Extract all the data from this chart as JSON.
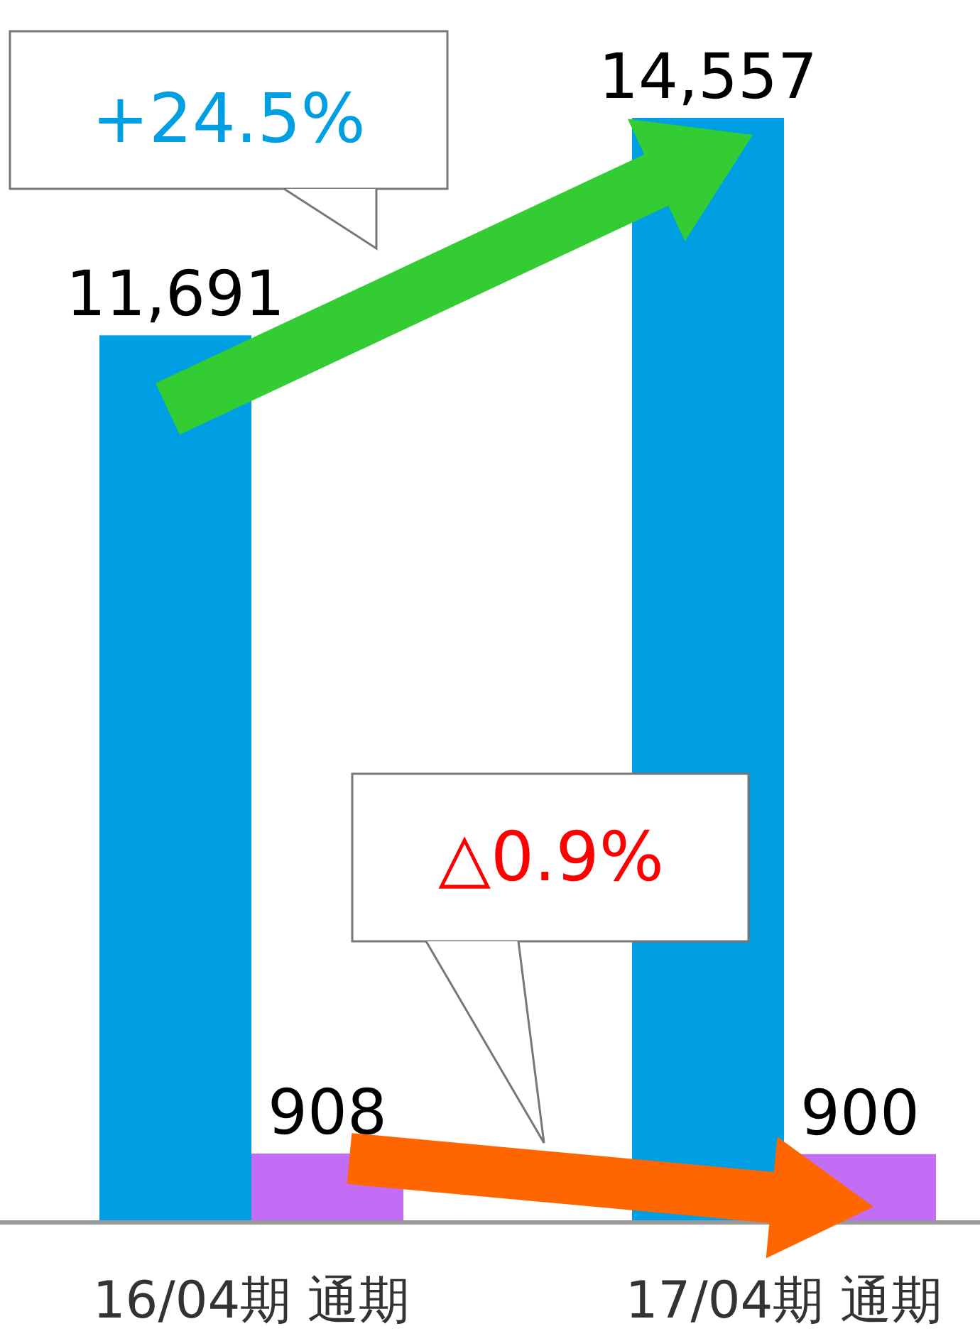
{
  "chart_data": {
    "type": "bar",
    "categories": [
      "16/04期 通期",
      "17/04期 通期"
    ],
    "series": [
      {
        "color": "#009fe3",
        "values": [
          11691,
          14557
        ],
        "value_labels": [
          "11,691",
          "14,557"
        ]
      },
      {
        "color": "#c36cf6",
        "values": [
          908,
          900
        ],
        "value_labels": [
          "908",
          "900"
        ]
      }
    ],
    "annotations": [
      "+24.5%",
      "△0.9%"
    ]
  }
}
